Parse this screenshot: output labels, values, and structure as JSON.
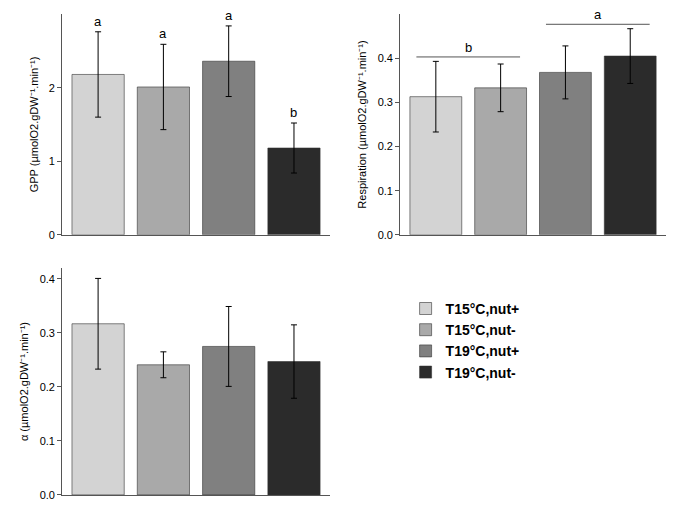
{
  "chart_data": [
    {
      "type": "bar",
      "y_label": "GPP (µmolO2.gDW⁻¹.min⁻¹)",
      "categories": [
        "T15°C,nut+",
        "T15°C,nut-",
        "T19°C,nut+",
        "T19°C,nut-"
      ],
      "values": [
        2.18,
        2.01,
        2.36,
        1.18
      ],
      "errors": [
        0.58,
        0.58,
        0.48,
        0.34
      ],
      "colors": [
        "#d3d3d3",
        "#a9a9a9",
        "#808080",
        "#2b2b2b"
      ],
      "ylim": [
        0,
        3
      ],
      "yticks": [
        0,
        1,
        2
      ],
      "tick_labels": "y",
      "annotations": [
        {
          "categories": [
            "T15°C,nut+"
          ],
          "text": "a"
        },
        {
          "categories": [
            "T15°C,nut-"
          ],
          "text": "a"
        },
        {
          "categories": [
            "T19°C,nut+"
          ],
          "text": "a"
        },
        {
          "categories": [
            "T19°C,nut-"
          ],
          "text": "b"
        }
      ]
    },
    {
      "type": "bar",
      "y_label": "Respiration (µmolO2.gDW⁻¹.min⁻¹)",
      "categories": [
        "T15°C,nut+",
        "T15°C,nut-",
        "T19°C,nut+",
        "T19°C,nut-"
      ],
      "values": [
        0.313,
        0.333,
        0.368,
        0.405
      ],
      "errors": [
        0.08,
        0.054,
        0.06,
        0.062
      ],
      "colors": [
        "#d3d3d3",
        "#a9a9a9",
        "#808080",
        "#2b2b2b"
      ],
      "ylim": [
        0,
        0.5
      ],
      "yticks": [
        {
          "value": 0,
          "label": "0.0"
        },
        0.1,
        0.2,
        0.3,
        0.4
      ],
      "tick_labels": "y",
      "annotations": [
        {
          "categories": [
            "T15°C,nut+",
            "T15°C,nut-"
          ],
          "text": "b"
        },
        {
          "categories": [
            "T19°C,nut+",
            "T19°C,nut-"
          ],
          "text": "a"
        }
      ]
    },
    {
      "type": "bar",
      "y_label": "α (µmolO2.gDW⁻¹.min⁻¹)",
      "categories": [
        "T15°C,nut+",
        "T15°C,nut-",
        "T19°C,nut+",
        "T19°C,nut-"
      ],
      "values": [
        0.317,
        0.241,
        0.275,
        0.247
      ],
      "errors": [
        0.084,
        0.024,
        0.074,
        0.068
      ],
      "colors": [
        "#d3d3d3",
        "#a9a9a9",
        "#808080",
        "#2b2b2b"
      ],
      "ylim": [
        0,
        0.42
      ],
      "yticks": [
        {
          "value": 0,
          "label": "0.0"
        },
        0.1,
        0.2,
        0.3,
        0.4
      ],
      "tick_labels": "y",
      "legend": "right"
    }
  ]
}
